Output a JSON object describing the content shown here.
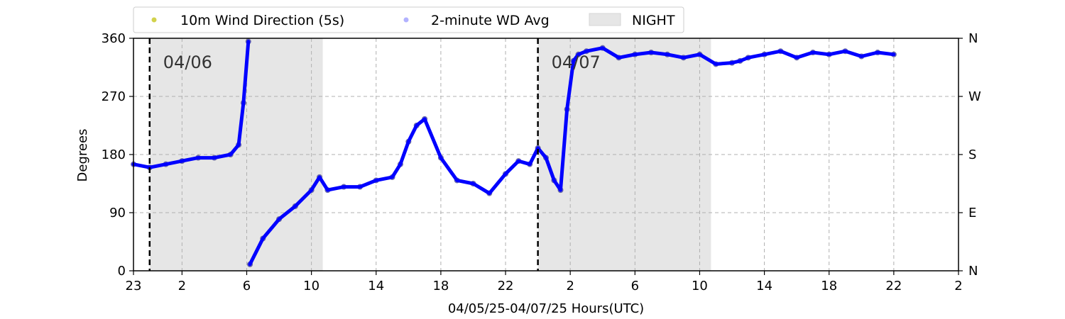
{
  "chart_data": {
    "type": "scatter",
    "title": "",
    "xlabel": "04/05/25-04/07/25  Hours(UTC)",
    "ylabel": "Degrees",
    "x_unit": "hours since 04/05 00:00 UTC",
    "xlim": [
      23,
      74
    ],
    "ylim": [
      0,
      360
    ],
    "x_tick_values": [
      23,
      26,
      30,
      34,
      38,
      42,
      46,
      50,
      54,
      58,
      62,
      66,
      70,
      74
    ],
    "x_tick_labels": [
      "23",
      "2",
      "6",
      "10",
      "14",
      "18",
      "22",
      "2",
      "6",
      "10",
      "14",
      "18",
      "22",
      "2"
    ],
    "y_ticks": [
      0,
      90,
      180,
      270,
      360
    ],
    "y_tick_labels": [
      "0",
      "90",
      "180",
      "270",
      "360"
    ],
    "right_axis_labels": [
      "N",
      "E",
      "S",
      "W",
      "N"
    ],
    "grid": true,
    "legend": {
      "placement": "top-left outside",
      "entries": [
        "10m Wind Direction (5s)",
        "2-minute WD Avg",
        "NIGHT"
      ]
    },
    "night_spans": [
      [
        24.0,
        34.7
      ],
      [
        48.0,
        58.7
      ]
    ],
    "day_boundaries": [
      24.0,
      48.0
    ],
    "day_labels": [
      {
        "x": 24.0,
        "text": "04/06"
      },
      {
        "x": 48.0,
        "text": "04/07"
      }
    ],
    "colors": {
      "wind_5s": "#bfbf00",
      "wd_avg": "#0000ff",
      "night": "#e6e6e6",
      "grid": "#b0b0b0"
    },
    "series": [
      {
        "name": "10m Wind Direction (5s)",
        "x": [
          23.0,
          24.0,
          25.0,
          26.0,
          27.0,
          28.0,
          29.0,
          29.5,
          29.8,
          30.1,
          30.2,
          31.0,
          32.0,
          33.0,
          34.0,
          34.5,
          35.0,
          36.0,
          37.0,
          38.0,
          39.0,
          39.5,
          40.0,
          40.5,
          41.0,
          42.0,
          43.0,
          44.0,
          45.0,
          46.0,
          46.8,
          47.5,
          48.0,
          48.5,
          49.0,
          49.4,
          49.8,
          50.2,
          50.5,
          51.0,
          52.0,
          53.0,
          54.0,
          55.0,
          56.0,
          57.0,
          58.0,
          59.0,
          60.0,
          60.5,
          61.0,
          62.0,
          63.0,
          64.0,
          65.0,
          66.0,
          67.0,
          68.0,
          69.0,
          70.0
        ],
        "y": [
          165,
          160,
          165,
          170,
          175,
          175,
          180,
          195,
          260,
          355,
          10,
          50,
          80,
          100,
          125,
          145,
          125,
          130,
          130,
          140,
          145,
          165,
          200,
          225,
          235,
          175,
          140,
          135,
          120,
          150,
          170,
          165,
          190,
          175,
          140,
          125,
          250,
          325,
          335,
          340,
          345,
          330,
          335,
          338,
          335,
          330,
          335,
          320,
          322,
          325,
          330,
          335,
          340,
          330,
          338,
          335,
          340,
          332,
          338,
          335
        ]
      },
      {
        "name": "2-minute WD Avg",
        "x": [
          23.0,
          24.0,
          25.0,
          26.0,
          27.0,
          28.0,
          29.0,
          29.5,
          29.8,
          30.1,
          30.2,
          31.0,
          32.0,
          33.0,
          34.0,
          34.5,
          35.0,
          36.0,
          37.0,
          38.0,
          39.0,
          39.5,
          40.0,
          40.5,
          41.0,
          42.0,
          43.0,
          44.0,
          45.0,
          46.0,
          46.8,
          47.5,
          48.0,
          48.5,
          49.0,
          49.4,
          49.8,
          50.2,
          50.5,
          51.0,
          52.0,
          53.0,
          54.0,
          55.0,
          56.0,
          57.0,
          58.0,
          59.0,
          60.0,
          60.5,
          61.0,
          62.0,
          63.0,
          64.0,
          65.0,
          66.0,
          67.0,
          68.0,
          69.0,
          70.0
        ],
        "y": [
          165,
          160,
          165,
          170,
          175,
          175,
          180,
          195,
          260,
          355,
          10,
          50,
          80,
          100,
          125,
          145,
          125,
          130,
          130,
          140,
          145,
          165,
          200,
          225,
          235,
          175,
          140,
          135,
          120,
          150,
          170,
          165,
          190,
          175,
          140,
          125,
          250,
          325,
          335,
          340,
          345,
          330,
          335,
          338,
          335,
          330,
          335,
          320,
          322,
          325,
          330,
          335,
          340,
          330,
          338,
          335,
          340,
          332,
          338,
          335
        ]
      }
    ]
  }
}
